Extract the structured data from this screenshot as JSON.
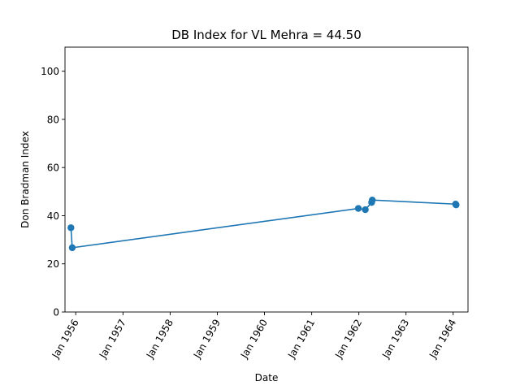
{
  "chart_data": {
    "type": "line",
    "title": "DB Index for VL Mehra = 44.50",
    "xlabel": "Date",
    "ylabel": "Don Bradman Index",
    "xlim": [
      "1955-10-10",
      "1964-04-25"
    ],
    "ylim": [
      0,
      110
    ],
    "x_ticks": [
      "1956-01-01",
      "1957-01-01",
      "1958-01-01",
      "1959-01-01",
      "1960-01-01",
      "1961-01-01",
      "1962-01-01",
      "1963-01-01",
      "1964-01-01"
    ],
    "x_tick_labels": [
      "Jan 1956",
      "Jan 1957",
      "Jan 1958",
      "Jan 1959",
      "Jan 1960",
      "Jan 1961",
      "Jan 1962",
      "Jan 1963",
      "Jan 1964"
    ],
    "y_ticks": [
      0,
      20,
      40,
      60,
      80,
      100
    ],
    "y_tick_labels": [
      "0",
      "20",
      "40",
      "60",
      "80",
      "100"
    ],
    "grid": false,
    "series": [
      {
        "color": "#1f77b4",
        "marker": "circle",
        "points": [
          {
            "x": "1955-11-25",
            "y": 35.0
          },
          {
            "x": "1955-12-05",
            "y": 26.7
          },
          {
            "x": "1961-12-28",
            "y": 43.0
          },
          {
            "x": "1962-02-20",
            "y": 42.5
          },
          {
            "x": "1962-04-10",
            "y": 45.5
          },
          {
            "x": "1962-04-15",
            "y": 46.5
          },
          {
            "x": "1964-01-20",
            "y": 44.8
          },
          {
            "x": "1964-01-24",
            "y": 44.5
          }
        ]
      }
    ]
  }
}
